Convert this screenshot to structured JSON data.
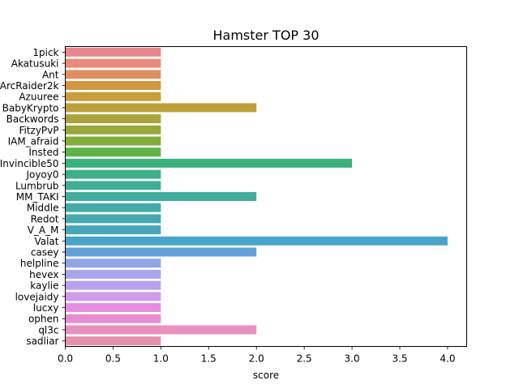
{
  "chart_data": {
    "type": "bar",
    "orientation": "horizontal",
    "title": "Hamster TOP 30",
    "xlabel": "score",
    "ylabel": "",
    "xlim": [
      0,
      4.2
    ],
    "xticks": [
      0.0,
      0.5,
      1.0,
      1.5,
      2.0,
      2.5,
      3.0,
      3.5,
      4.0
    ],
    "xtick_labels": [
      "0.0",
      "0.5",
      "1.0",
      "1.5",
      "2.0",
      "2.5",
      "3.0",
      "3.5",
      "4.0"
    ],
    "grid": false,
    "categories": [
      "1pick",
      "Akatusuki",
      "Ant",
      "ArcRaider2k",
      "Azuuree",
      "BabyKrypto",
      "Backwords",
      "FitzyPvP",
      "IAM_afraid",
      "Insted",
      "Invincible50",
      "Joyoy0",
      "Lumbrub",
      "MM_TAKI",
      "Middle",
      "Redot",
      "V_A_M",
      "Valat",
      "casey",
      "helpline",
      "hevex",
      "kaylie",
      "lovejaidy",
      "lucxy",
      "ophen",
      "ql3c",
      "sadliar"
    ],
    "values": [
      1,
      1,
      1,
      1,
      1,
      2,
      1,
      1,
      1,
      1,
      3,
      1,
      1,
      2,
      1,
      1,
      1,
      4,
      2,
      1,
      1,
      1,
      1,
      1,
      1,
      2,
      1
    ],
    "colors": [
      "#e8868d",
      "#e88b7a",
      "#e08f62",
      "#d2963f",
      "#c89c3b",
      "#bb9f39",
      "#aaa33a",
      "#99a83a",
      "#81ac3a",
      "#5db446",
      "#3ab17a",
      "#3db08a",
      "#3fae95",
      "#41ad9f",
      "#42aba8",
      "#44a9b1",
      "#46a7bb",
      "#48a4ca",
      "#61a1d9",
      "#8ea6e5",
      "#a7a6ec",
      "#b9a1ee",
      "#cf9bea",
      "#e48ee3",
      "#e88cd4",
      "#e890bf",
      "#e792ad"
    ]
  }
}
